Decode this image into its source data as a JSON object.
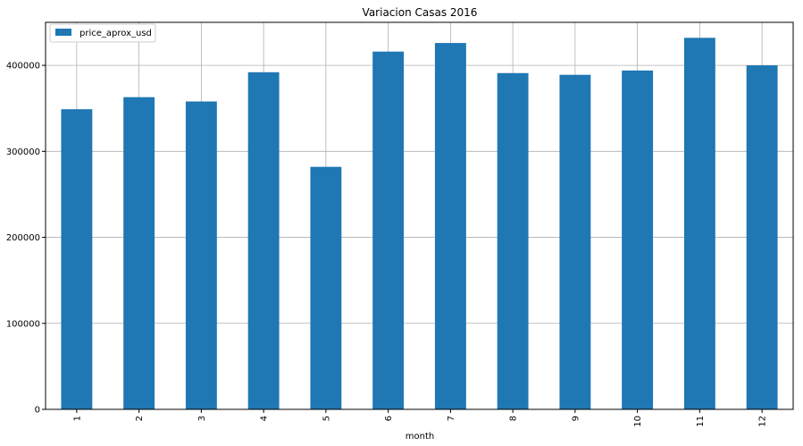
{
  "chart_data": {
    "type": "bar",
    "title": "Variacion Casas 2016",
    "xlabel": "month",
    "ylabel": "",
    "categories": [
      "1",
      "2",
      "3",
      "4",
      "5",
      "6",
      "7",
      "8",
      "9",
      "10",
      "11",
      "12"
    ],
    "series": [
      {
        "name": "price_aprox_usd",
        "color": "#1f77b4",
        "values": [
          349000,
          363000,
          358000,
          392000,
          282000,
          416000,
          426000,
          391000,
          389000,
          394000,
          432000,
          400000
        ]
      }
    ],
    "ylim": [
      0,
      450000
    ],
    "yticks": [
      0,
      100000,
      200000,
      300000,
      400000
    ],
    "ytick_labels": [
      "0",
      "100000",
      "200000",
      "300000",
      "400000"
    ],
    "grid": true,
    "legend_position": "top-left"
  }
}
